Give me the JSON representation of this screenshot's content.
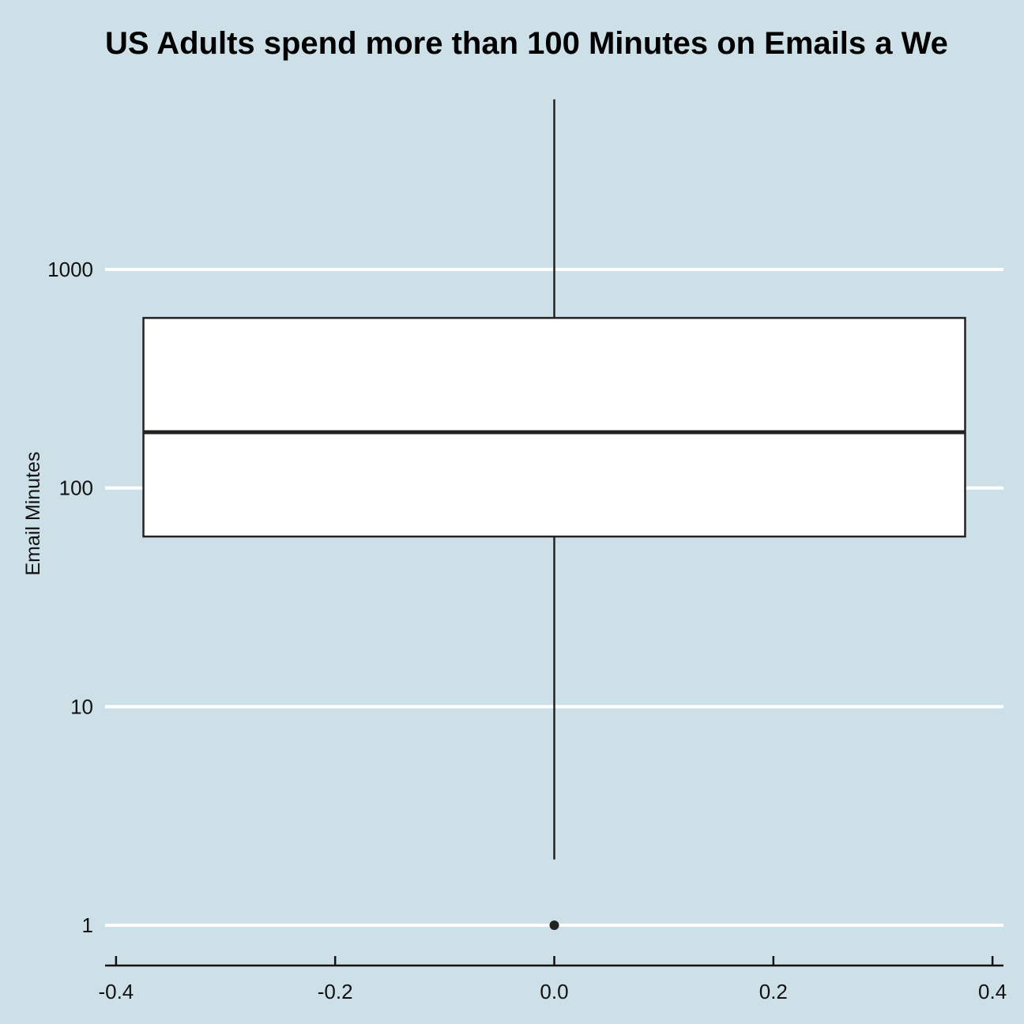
{
  "chart_data": {
    "type": "box",
    "title": "US Adults spend more than 100 Minutes on Emails a We",
    "xlabel": "",
    "ylabel": "Email Minutes",
    "yscale": "log10",
    "x_ticks": [
      "-0.4",
      "-0.2",
      "0.0",
      "0.2",
      "0.4"
    ],
    "x_tick_values": [
      -0.4,
      -0.2,
      0.0,
      0.2,
      0.4
    ],
    "y_ticks": [
      "1",
      "10",
      "100",
      "1000"
    ],
    "y_tick_values": [
      1,
      10,
      100,
      1000
    ],
    "xlim": [
      -0.41,
      0.41
    ],
    "box": {
      "x_left": -0.375,
      "x_right": 0.375,
      "center": 0.0,
      "whisker_low": 2,
      "q1": 60,
      "median": 180,
      "q3": 600,
      "whisker_high": 6000
    },
    "outliers": [
      1
    ],
    "colors": {
      "background": "#cde0e8",
      "grid": "#ffffff",
      "box_fill": "#ffffff",
      "box_stroke": "#222222",
      "text": "#000000"
    },
    "grid": {
      "horizontal": true,
      "vertical": false
    },
    "legend": "none"
  }
}
